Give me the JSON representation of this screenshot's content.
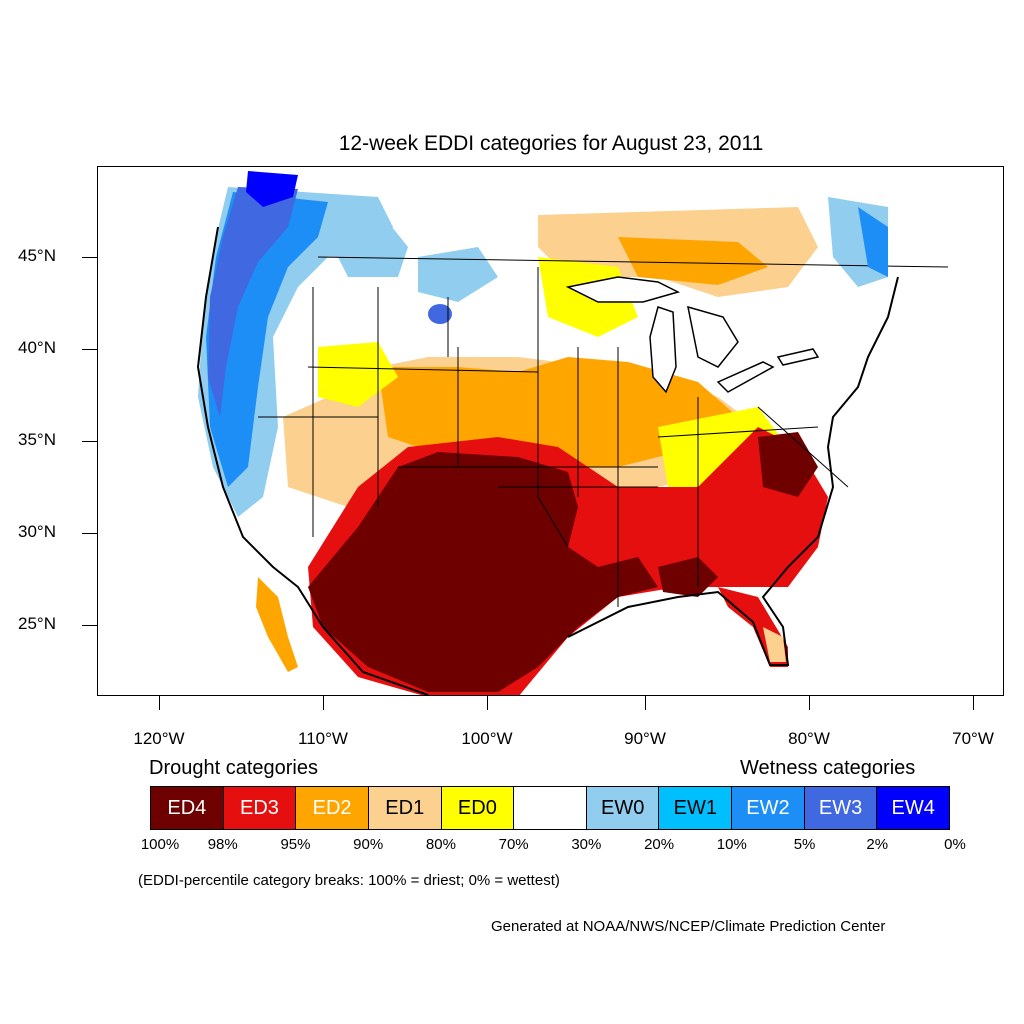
{
  "title": "12-week EDDI categories for August 23, 2011",
  "map": {
    "lat_labels": [
      "45°N",
      "40°N",
      "35°N",
      "30°N",
      "25°N"
    ],
    "lon_labels": [
      "120°W",
      "110°W",
      "100°W",
      "90°W",
      "80°W",
      "70°W"
    ],
    "category_colors": {
      "ED4": "#6e0000",
      "ED3": "#e60f0f",
      "ED2": "#ffa500",
      "ED1": "#fcd08e",
      "ED0": "#ffff00",
      "NONE": "#ffffff",
      "EW0": "#91cdef",
      "EW1": "#00bfff",
      "EW2": "#1e8ef7",
      "EW3": "#4068e0",
      "EW4": "#0000ff"
    }
  },
  "legend": {
    "drought_title": "Drought categories",
    "wetness_title": "Wetness categories",
    "categories": [
      {
        "label": "ED4",
        "color": "#6e0000",
        "text_color": "#ffffff"
      },
      {
        "label": "ED3",
        "color": "#e60f0f",
        "text_color": "#ffffff"
      },
      {
        "label": "ED2",
        "color": "#ffa500",
        "text_color": "#ffffff"
      },
      {
        "label": "ED1",
        "color": "#fcd08e",
        "text_color": "#000000"
      },
      {
        "label": "ED0",
        "color": "#ffff00",
        "text_color": "#000000"
      },
      {
        "label": "",
        "color": "#ffffff",
        "text_color": "#000000"
      },
      {
        "label": "EW0",
        "color": "#91cdef",
        "text_color": "#000000"
      },
      {
        "label": "EW1",
        "color": "#00bfff",
        "text_color": "#000000"
      },
      {
        "label": "EW2",
        "color": "#1e8ef7",
        "text_color": "#ffffff"
      },
      {
        "label": "EW3",
        "color": "#4068e0",
        "text_color": "#ffffff"
      },
      {
        "label": "EW4",
        "color": "#0000ff",
        "text_color": "#ffffff"
      }
    ],
    "breaks": [
      "100%",
      "98%",
      "95%",
      "90%",
      "80%",
      "70%",
      "30%",
      "20%",
      "10%",
      "5%",
      "2%",
      "0%"
    ],
    "note": "(EDDI-percentile category breaks: 100% = driest; 0% = wettest)"
  },
  "credit": "Generated at NOAA/NWS/NCEP/Climate Prediction Center"
}
